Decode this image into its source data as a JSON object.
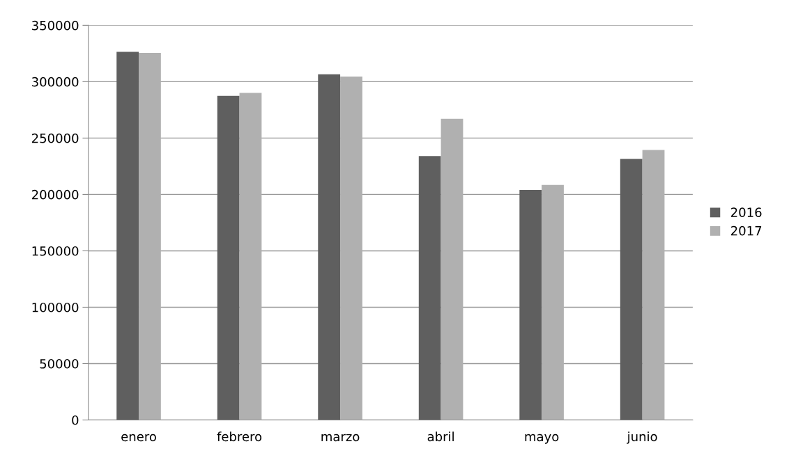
{
  "chart_data": {
    "type": "bar",
    "categories": [
      "enero",
      "febrero",
      "marzo",
      "abril",
      "mayo",
      "junio"
    ],
    "series": [
      {
        "name": "2016",
        "color": "#5f5f5f",
        "values": [
          326500,
          287500,
          306500,
          234000,
          204000,
          231500
        ]
      },
      {
        "name": "2017",
        "color": "#b0b0b0",
        "values": [
          325500,
          290000,
          304500,
          267000,
          208500,
          239500
        ]
      }
    ],
    "ylim": [
      0,
      350000
    ],
    "yticks": [
      0,
      50000,
      100000,
      150000,
      200000,
      250000,
      300000,
      350000
    ],
    "grid": "y",
    "legend": "right"
  }
}
